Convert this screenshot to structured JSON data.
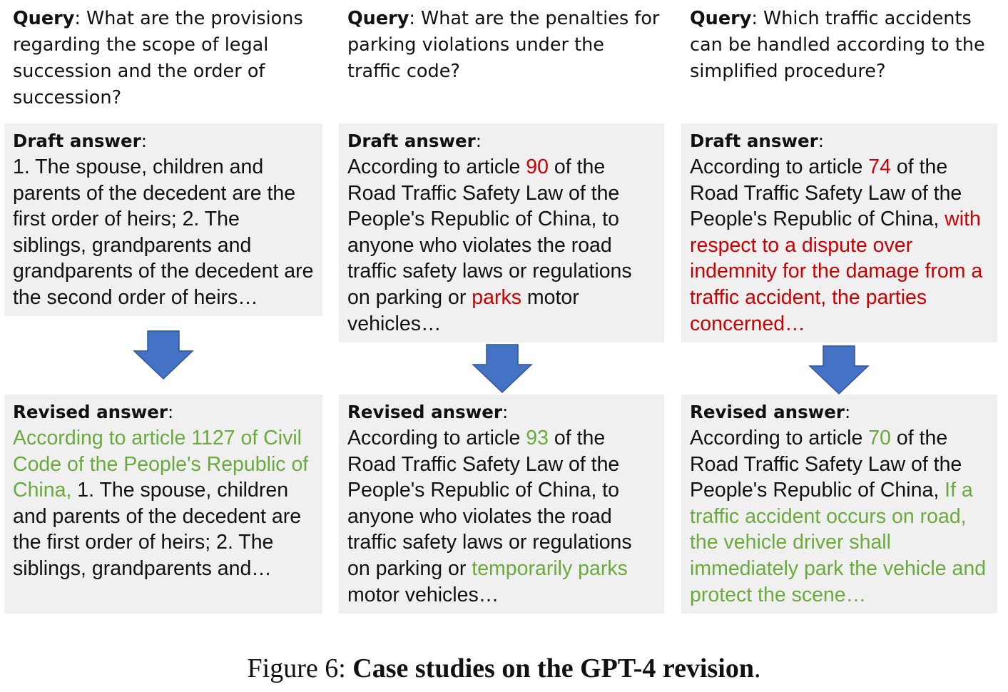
{
  "columns": [
    {
      "query_label": "Query",
      "query_text": ": What are the provisions regarding the scope of legal succession and the order of succession?",
      "draft_label": "Draft answer",
      "draft_segments": [
        {
          "text": "1. The spouse, children and parents of the decedent are the first order of heirs; 2. The siblings, grandparents and grandparents of the decedent are the second order of heirs…",
          "style": "plain"
        }
      ],
      "revised_label": "Revised answer",
      "revised_segments": [
        {
          "text": "According to article 1127 of Civil Code of the People's Republic of China,",
          "style": "green"
        },
        {
          "text": " 1. The spouse, children and parents of the decedent are the first order of heirs; 2. The siblings, grandparents and…",
          "style": "plain"
        }
      ]
    },
    {
      "query_label": "Query",
      "query_text": ": What are the penalties for parking violations under the traffic code?",
      "draft_label": "Draft answer",
      "draft_segments": [
        {
          "text": "According to article ",
          "style": "plain"
        },
        {
          "text": "90",
          "style": "red"
        },
        {
          "text": " of the Road Traffic Safety Law of the People's Republic of China, to anyone who violates the road traffic safety laws or regulations on parking or ",
          "style": "plain"
        },
        {
          "text": "parks",
          "style": "red"
        },
        {
          "text": " motor vehicles…",
          "style": "plain"
        }
      ],
      "revised_label": "Revised answer",
      "revised_segments": [
        {
          "text": "According to article ",
          "style": "plain"
        },
        {
          "text": "93",
          "style": "green"
        },
        {
          "text": " of the Road Traffic Safety Law of the People's Republic of China, to anyone who violates the road traffic safety laws or regulations on parking or ",
          "style": "plain"
        },
        {
          "text": "temporarily parks",
          "style": "green"
        },
        {
          "text": " motor vehicles…",
          "style": "plain"
        }
      ]
    },
    {
      "query_label": "Query",
      "query_text": ": Which traffic accidents can be handled according to the simplified procedure?",
      "draft_label": "Draft answer",
      "draft_segments": [
        {
          "text": "According to article ",
          "style": "plain"
        },
        {
          "text": "74",
          "style": "red"
        },
        {
          "text": " of the Road Traffic Safety Law of the People's Republic of China, ",
          "style": "plain"
        },
        {
          "text": "with respect to a dispute over indemnity for the damage from a traffic accident, the parties concerned…",
          "style": "red"
        }
      ],
      "revised_label": "Revised answer",
      "revised_segments": [
        {
          "text": "According to article ",
          "style": "plain"
        },
        {
          "text": "70",
          "style": "green"
        },
        {
          "text": " of the Road Traffic Safety Law of the People's Republic of China, ",
          "style": "plain"
        },
        {
          "text": "If a traffic accident occurs on road, the vehicle driver shall immediately park the vehicle and protect the scene…",
          "style": "green"
        }
      ]
    }
  ],
  "caption": {
    "prefix": "Figure 6: ",
    "title": "Case studies on the GPT-4 revision",
    "suffix": "."
  },
  "colors": {
    "error_highlight": "#cc0000",
    "fix_highlight": "#6aaa3d",
    "arrow": "#4472c4",
    "box_background": "#f0f0f0"
  }
}
